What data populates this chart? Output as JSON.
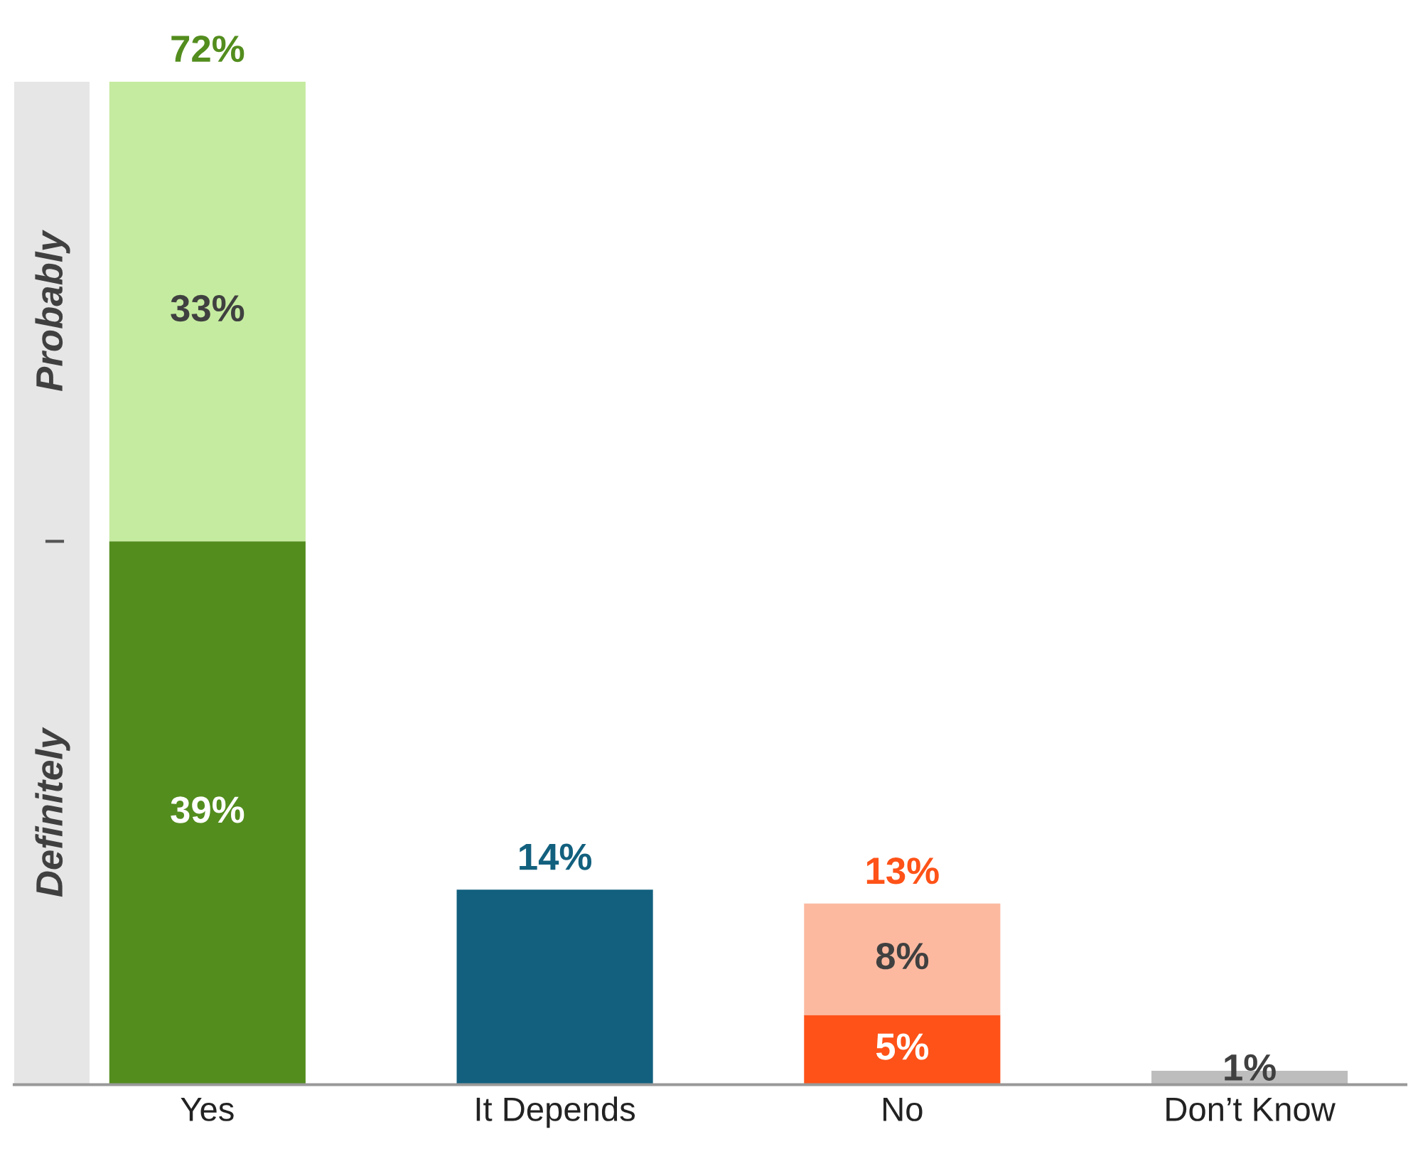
{
  "chart_data": {
    "type": "bar",
    "stacked": true,
    "categories": [
      "Yes",
      "It Depends",
      "No",
      "Don’t Know"
    ],
    "series": [
      {
        "values": [
          39,
          14,
          5,
          1
        ],
        "colors": [
          "#538d1e",
          "#12607e",
          "#fe5218",
          "#bdbdbd"
        ],
        "value_labels": [
          "39%",
          null,
          "5%",
          "1%"
        ]
      },
      {
        "values": [
          33,
          null,
          8,
          null
        ],
        "colors": [
          "#c5eba0",
          "#c5eba0",
          "#fcb9a0",
          "#bdbdbd"
        ],
        "value_labels": [
          "33%",
          null,
          "8%",
          null
        ]
      }
    ],
    "totals": [
      "72%",
      "14%",
      "13%",
      null
    ],
    "annotations": [
      "Probably",
      "Definitely"
    ],
    "bands": [
      {
        "axis": "y",
        "from": 0,
        "to": 72,
        "color": "#e6e6e6"
      }
    ],
    "legend": false,
    "grid": false
  }
}
